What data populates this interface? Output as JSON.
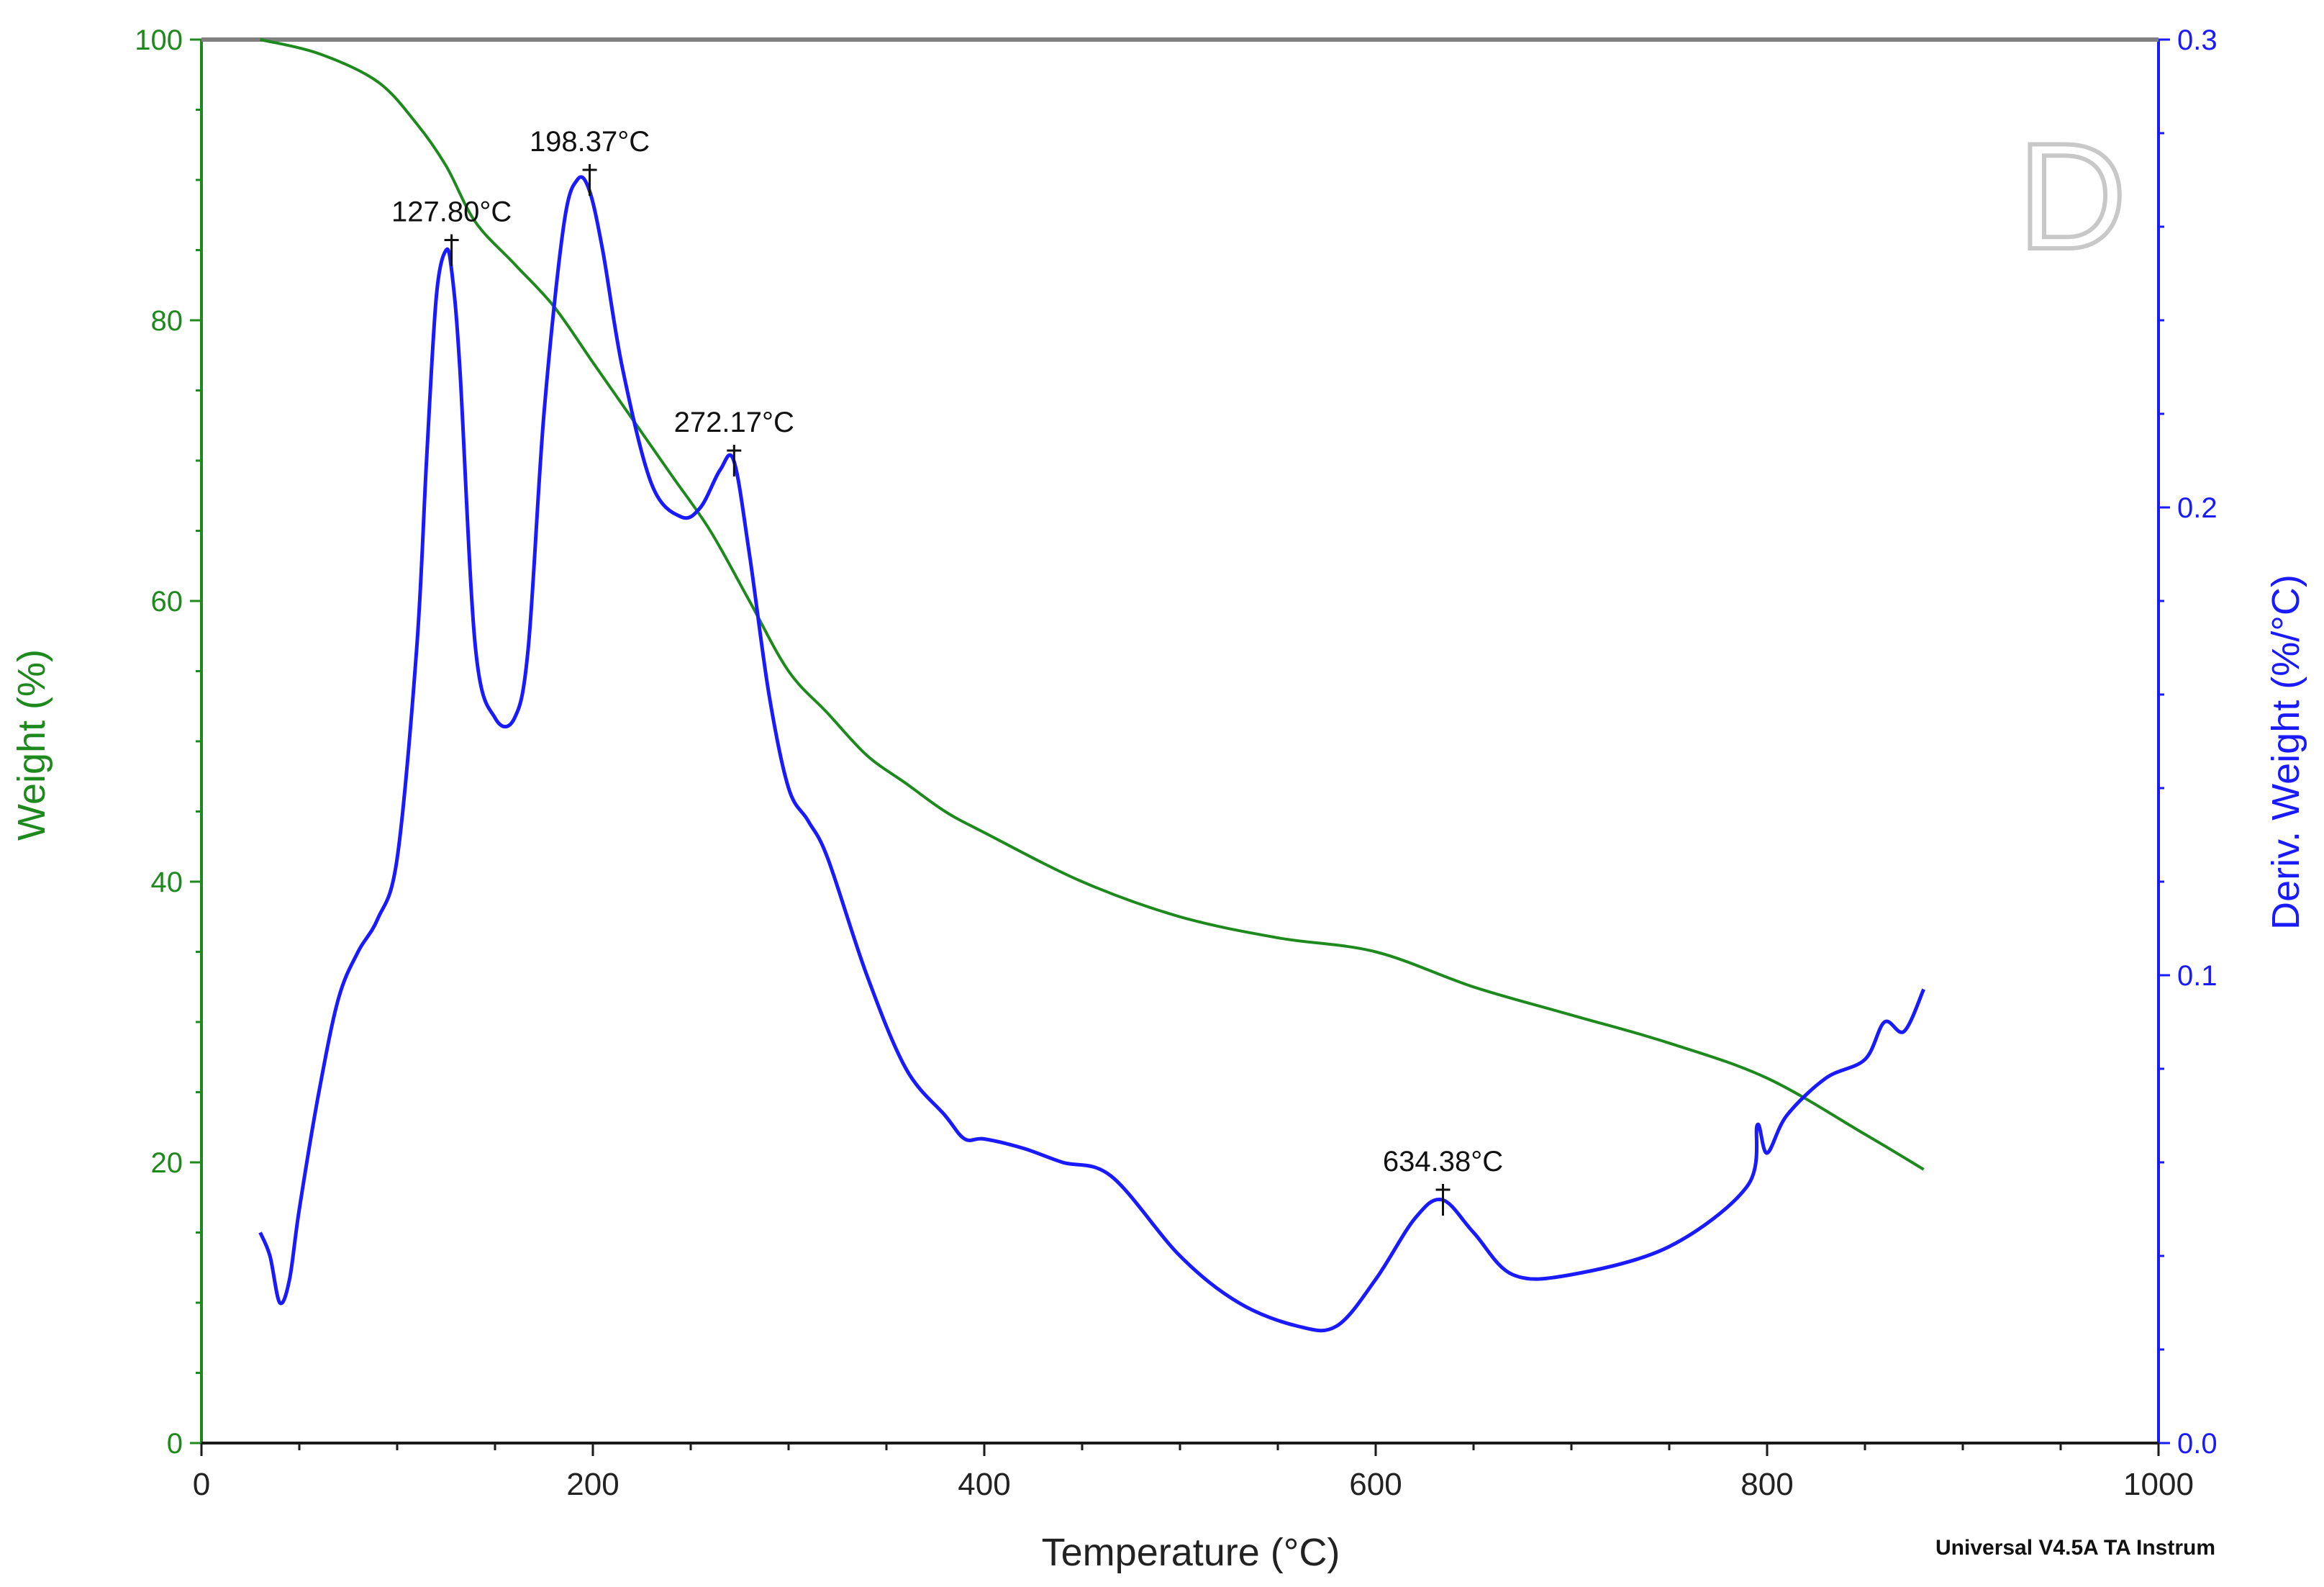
{
  "chart_data": {
    "type": "line",
    "panel_label": "D",
    "x_axis": {
      "label": "Temperature (°C)",
      "range": [
        0,
        1000
      ],
      "ticks": [
        0,
        200,
        400,
        600,
        800,
        1000
      ],
      "tick_labels": [
        "0",
        "200",
        "400",
        "600",
        "800",
        "1000"
      ]
    },
    "y_left": {
      "label": "Weight (%)",
      "range": [
        0,
        100
      ],
      "ticks": [
        0,
        20,
        40,
        60,
        80,
        100
      ],
      "tick_labels": [
        "0",
        "20",
        "40",
        "60",
        "80",
        "100"
      ],
      "color": "#1e8a1e"
    },
    "y_right": {
      "label": "Deriv. Weight (%/°C)",
      "range": [
        0.0,
        0.3
      ],
      "ticks": [
        0.0,
        0.1,
        0.2,
        0.3
      ],
      "tick_labels": [
        "0.0",
        "0.1",
        "0.2",
        "0.3"
      ],
      "color": "#1a1aff"
    },
    "series": [
      {
        "name": "Weight",
        "axis": "left",
        "color": "#1e8a1e",
        "x": [
          30,
          60,
          90,
          110,
          125,
          140,
          160,
          180,
          200,
          220,
          240,
          260,
          280,
          300,
          320,
          340,
          360,
          380,
          400,
          450,
          500,
          550,
          600,
          650,
          700,
          750,
          800,
          850,
          880
        ],
        "y": [
          100,
          99,
          97,
          94,
          91,
          87,
          84,
          81,
          77,
          73,
          69,
          65,
          60,
          55,
          52,
          49,
          47,
          45,
          43.5,
          40,
          37.5,
          36,
          35,
          32.5,
          30.5,
          28.5,
          26,
          22,
          19.5
        ]
      },
      {
        "name": "Deriv. Weight",
        "axis": "right",
        "color": "#1a1aff",
        "x": [
          30,
          35,
          40,
          45,
          50,
          60,
          70,
          80,
          90,
          100,
          110,
          115,
          120,
          125,
          128,
          132,
          140,
          150,
          160,
          167,
          175,
          185,
          192,
          198,
          205,
          215,
          230,
          245,
          255,
          265,
          272,
          280,
          290,
          300,
          310,
          320,
          340,
          360,
          380,
          390,
          400,
          420,
          440,
          465,
          500,
          530,
          560,
          580,
          600,
          620,
          634,
          650,
          670,
          700,
          750,
          790,
          795,
          800,
          810,
          830,
          850,
          860,
          870,
          880
        ],
        "y": [
          0.045,
          0.04,
          0.03,
          0.035,
          0.05,
          0.075,
          0.095,
          0.105,
          0.112,
          0.125,
          0.17,
          0.21,
          0.245,
          0.255,
          0.25,
          0.23,
          0.17,
          0.155,
          0.155,
          0.17,
          0.22,
          0.26,
          0.27,
          0.268,
          0.255,
          0.23,
          0.205,
          0.198,
          0.2,
          0.208,
          0.21,
          0.19,
          0.16,
          0.14,
          0.133,
          0.125,
          0.1,
          0.08,
          0.07,
          0.065,
          0.065,
          0.063,
          0.06,
          0.057,
          0.04,
          0.03,
          0.025,
          0.025,
          0.035,
          0.048,
          0.052,
          0.045,
          0.036,
          0.036,
          0.042,
          0.055,
          0.068,
          0.062,
          0.07,
          0.078,
          0.082,
          0.09,
          0.088,
          0.097
        ]
      }
    ],
    "annotations": [
      {
        "label": "127.80°C",
        "x": 127.8,
        "y": 0.255
      },
      {
        "label": "198.37°C",
        "x": 198.37,
        "y": 0.27
      },
      {
        "label": "272.17°C",
        "x": 272.17,
        "y": 0.21
      },
      {
        "label": "634.38°C",
        "x": 634.38,
        "y": 0.052
      }
    ],
    "footer": "Universal V4.5A TA Instrum"
  }
}
